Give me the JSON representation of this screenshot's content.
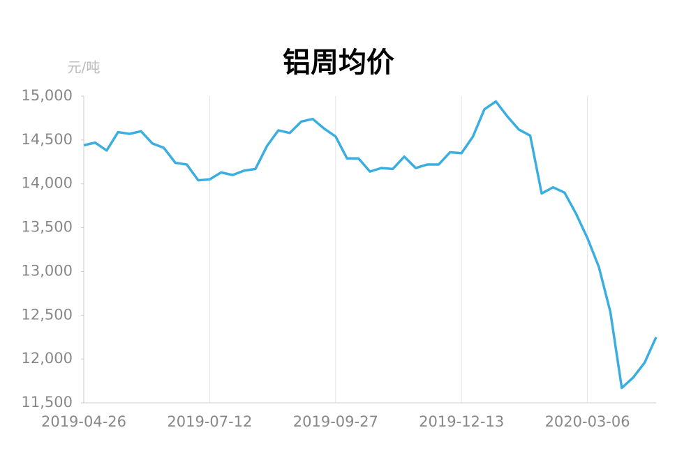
{
  "chart_data": {
    "type": "line",
    "title": "铝周均价",
    "y_label": "元/吨",
    "categories": [
      "2019-04-26",
      null,
      null,
      null,
      null,
      null,
      null,
      null,
      null,
      null,
      null,
      "2019-07-12",
      null,
      null,
      null,
      null,
      null,
      null,
      null,
      null,
      null,
      null,
      "2019-09-27",
      null,
      null,
      null,
      null,
      null,
      null,
      null,
      null,
      null,
      null,
      "2019-12-13",
      null,
      null,
      null,
      null,
      null,
      null,
      null,
      null,
      null,
      null,
      "2020-03-06",
      null,
      null,
      null,
      null,
      null,
      null
    ],
    "series": [
      {
        "name": "铝周均价",
        "color": "#3aaee0",
        "values": [
          14440,
          14470,
          14380,
          14590,
          14570,
          14600,
          14460,
          14410,
          14240,
          14220,
          14040,
          14050,
          14130,
          14100,
          14150,
          14170,
          14430,
          14610,
          14580,
          14710,
          14740,
          14630,
          14540,
          14290,
          14290,
          14140,
          14180,
          14170,
          14310,
          14180,
          14220,
          14220,
          14360,
          14350,
          14540,
          14850,
          14940,
          14770,
          14620,
          14550,
          13890,
          13960,
          13900,
          13660,
          13380,
          13050,
          12540,
          11670,
          11790,
          11960,
          12250
        ]
      }
    ],
    "ylim": [
      11500,
      15000
    ],
    "yticks": [
      {
        "value": 11500,
        "label": "11,500"
      },
      {
        "value": 12000,
        "label": "12,000"
      },
      {
        "value": 12500,
        "label": "12,500"
      },
      {
        "value": 13000,
        "label": "13,000"
      },
      {
        "value": 13500,
        "label": "13,500"
      },
      {
        "value": 14000,
        "label": "14,000"
      },
      {
        "value": 14500,
        "label": "14,500"
      },
      {
        "value": 15000,
        "label": "15,000"
      }
    ],
    "grid": "x"
  }
}
